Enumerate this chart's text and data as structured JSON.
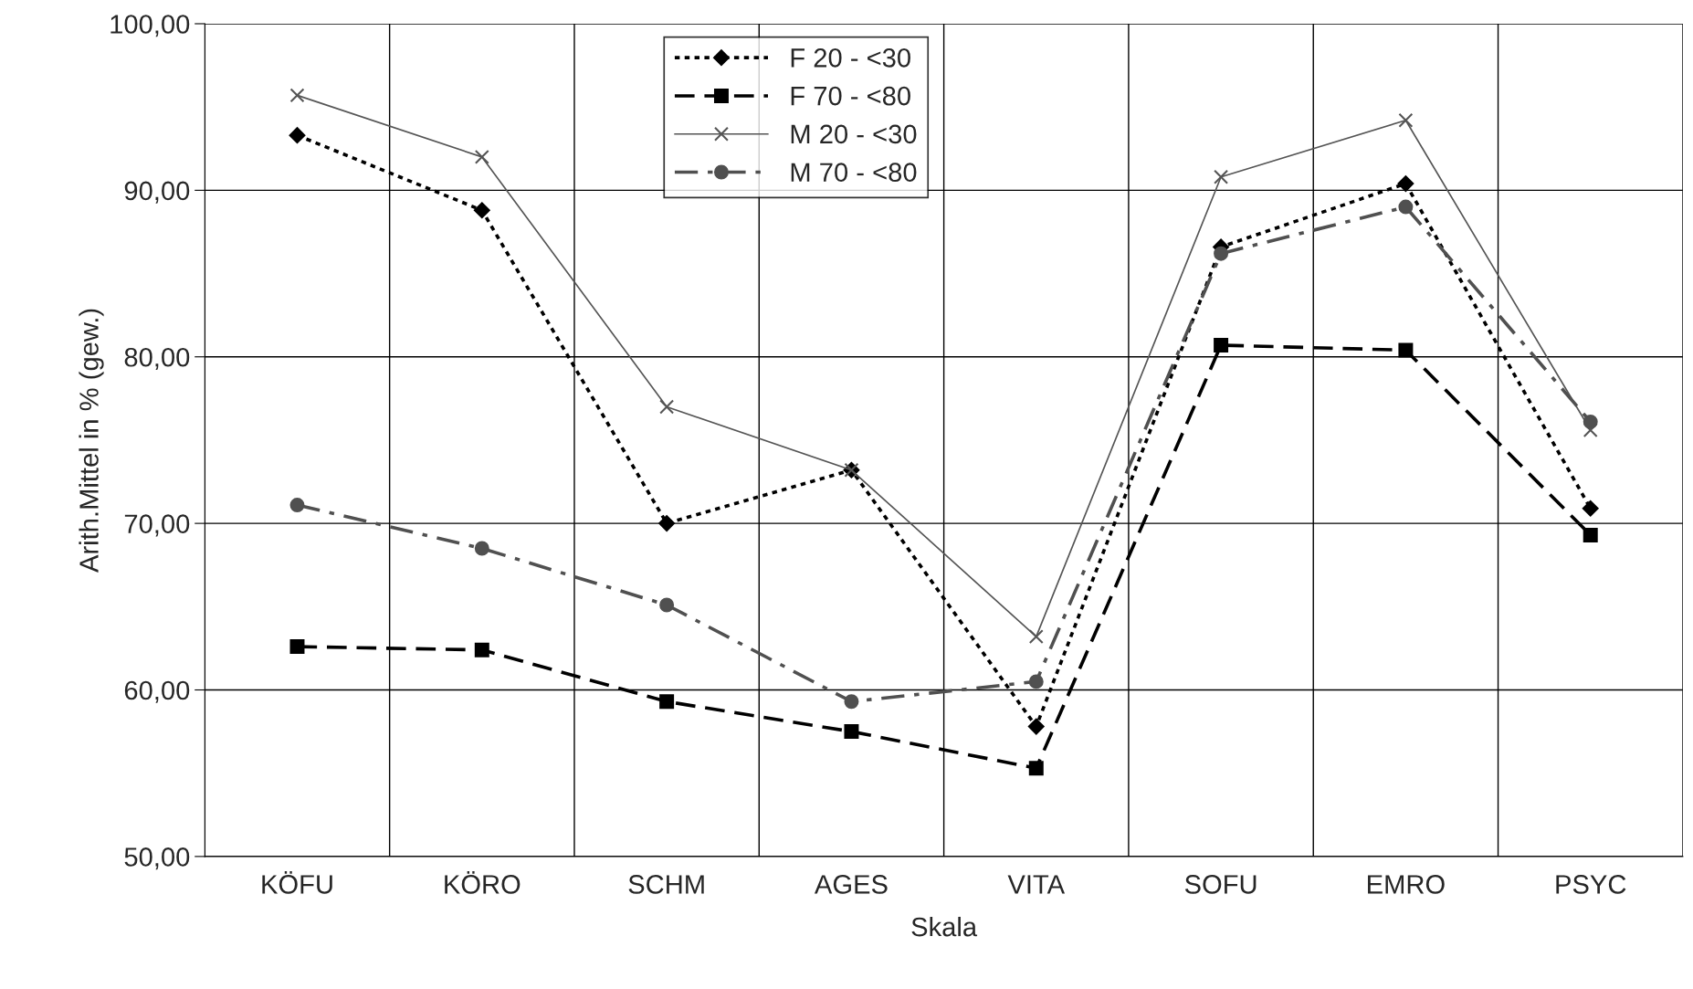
{
  "chart_data": {
    "type": "line",
    "xlabel": "Skala",
    "ylabel": "Arith.Mittel in % (gew.)",
    "categories": [
      "KÖFU",
      "KÖRO",
      "SCHM",
      "AGES",
      "VITA",
      "SOFU",
      "EMRO",
      "PSYC"
    ],
    "series": [
      {
        "name": "F 20 - <30",
        "color": "#000000",
        "marker": "diamond",
        "line_style": "dotted",
        "values": [
          93.3,
          88.8,
          70.0,
          73.2,
          57.8,
          86.6,
          90.4,
          70.9
        ]
      },
      {
        "name": "F 70 - <80",
        "color": "#000000",
        "marker": "square",
        "line_style": "dashed",
        "values": [
          62.6,
          62.4,
          59.3,
          57.5,
          55.3,
          80.7,
          80.4,
          69.3
        ]
      },
      {
        "name": "M 20 - <30",
        "color": "#555555",
        "marker": "cross",
        "line_style": "solid",
        "values": [
          95.7,
          92.0,
          77.0,
          73.2,
          63.2,
          90.8,
          94.2,
          75.6
        ]
      },
      {
        "name": "M 70 - <80",
        "color": "#505050",
        "marker": "circle",
        "line_style": "dashdot",
        "values": [
          71.1,
          68.5,
          65.1,
          59.3,
          60.5,
          86.2,
          89.0,
          76.1
        ]
      }
    ],
    "ylim": [
      50,
      100
    ],
    "yticks": [
      {
        "value": 50,
        "label": "50,00"
      },
      {
        "value": 60,
        "label": "60,00"
      },
      {
        "value": 70,
        "label": "70,00"
      },
      {
        "value": 80,
        "label": "80,00"
      },
      {
        "value": 90,
        "label": "90,00"
      },
      {
        "value": 100,
        "label": "100,00"
      }
    ],
    "grid": true,
    "legend": "top"
  }
}
